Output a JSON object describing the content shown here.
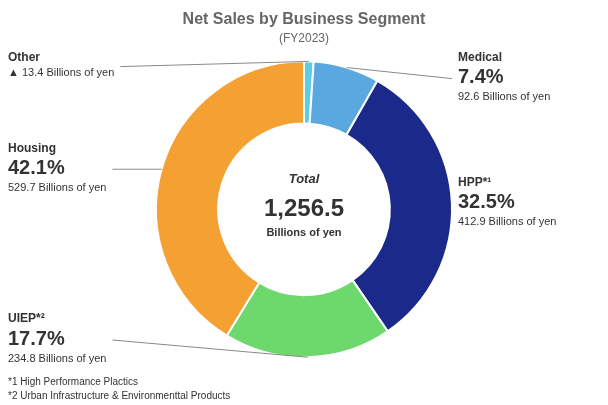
{
  "chart_data": {
    "type": "doughnut",
    "title": "Net Sales by Business Segment",
    "subtitle": "(FY2023)",
    "categories": [
      "Other",
      "Medical",
      "HPP*¹",
      "UIEP*²",
      "Housing"
    ],
    "values": [
      13.4,
      92.6,
      412.9,
      234.8,
      529.7
    ],
    "value_labels": [
      "▲ 13.4 Billions of yen",
      "92.6 Billions of yen",
      "412.9 Billions of yen",
      "234.8 Billions of yen",
      "529.7 Billions of yen"
    ],
    "shares": [
      null,
      7.4,
      32.5,
      17.7,
      42.1
    ],
    "share_labels": [
      null,
      "7.4%",
      "32.5%",
      "17.7%",
      "42.1%"
    ],
    "colors": [
      "#5DCDE3",
      "#5BA8E0",
      "#1B2A8A",
      "#6DD96D",
      "#F5A033"
    ],
    "data_labels": true,
    "center_text": [
      "Total",
      "1,256.5",
      "Billions of yen"
    ],
    "footnotes": [
      "*1 High Performance Plactics",
      "*2 Urban Infrastructure & Environmenttal Products"
    ]
  }
}
